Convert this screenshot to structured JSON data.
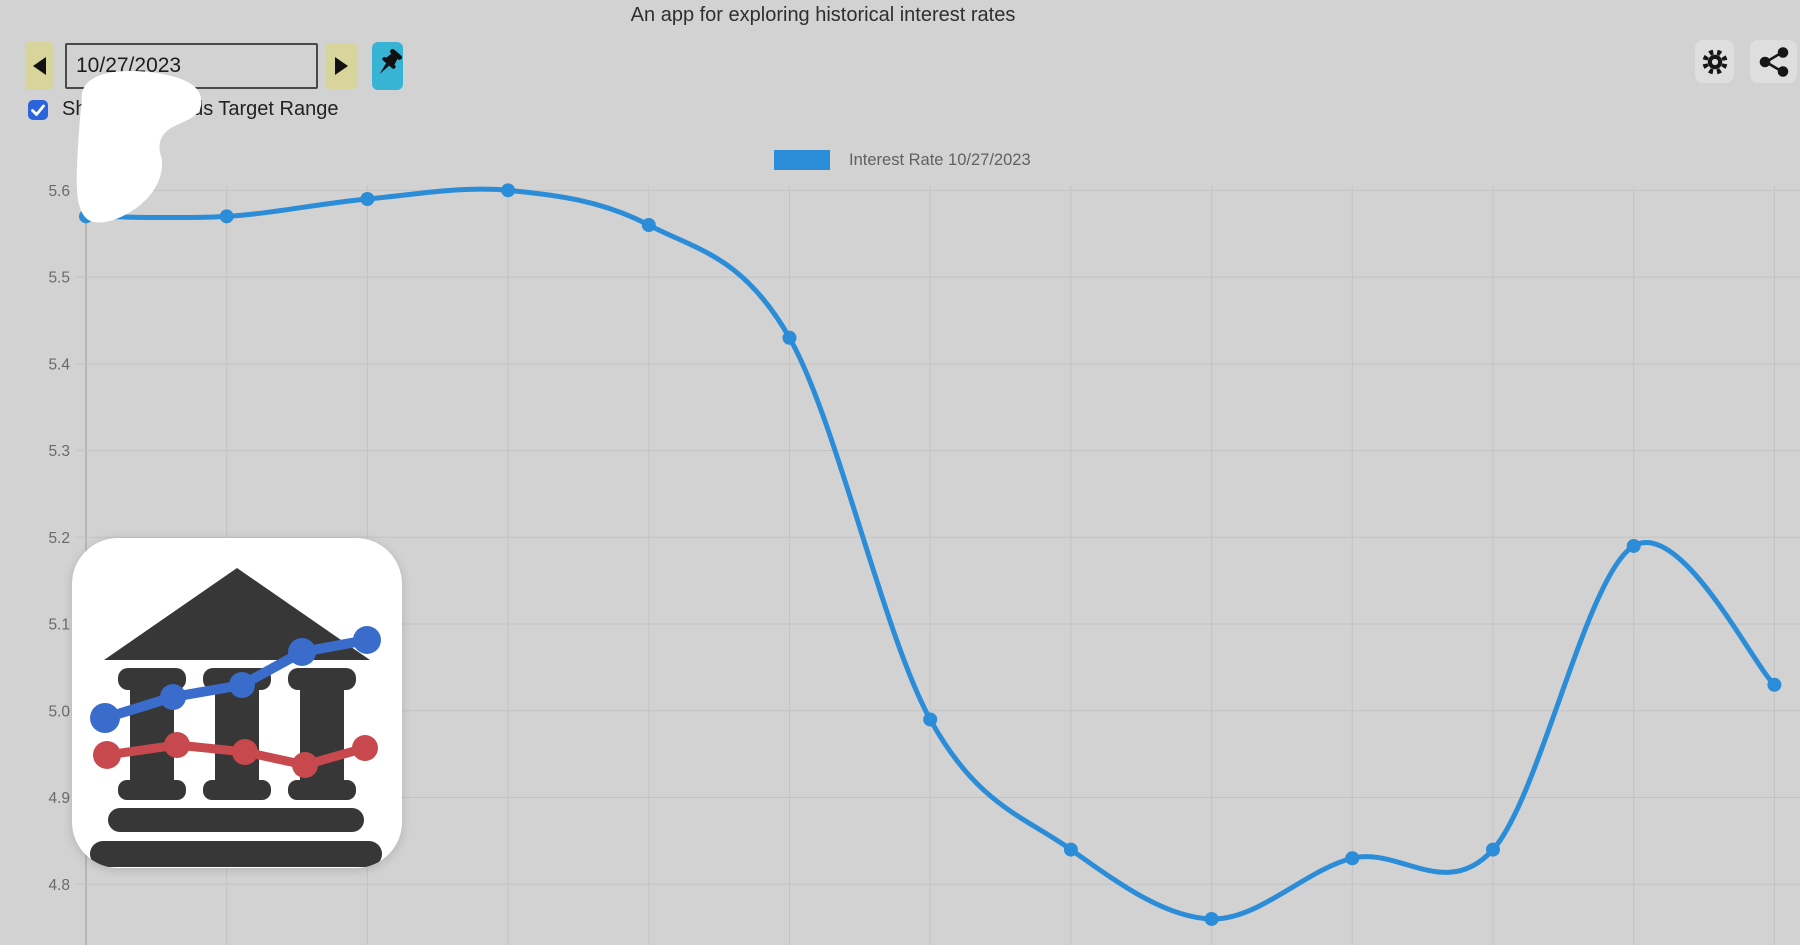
{
  "title": "An app for exploring historical interest rates",
  "toolbar": {
    "date_value": "10/27/2023",
    "target_range_label": "Show Fed Funds Target Range",
    "target_range_checked": true
  },
  "legend": {
    "label": "Interest Rate 10/27/2023"
  },
  "chart_data": {
    "type": "line",
    "title": "",
    "series": [
      {
        "name": "Interest Rate 10/27/2023",
        "color": "#2b8cd8",
        "values": [
          5.57,
          5.57,
          5.59,
          5.6,
          5.56,
          5.43,
          4.99,
          4.84,
          4.76,
          4.83,
          4.84,
          5.19,
          5.03
        ]
      }
    ],
    "x_tick_labels": [
      "",
      "",
      "",
      "",
      "",
      "",
      "",
      "",
      "",
      "",
      "",
      "",
      ""
    ],
    "x_axis_note": "x tick labels cut off below viewport",
    "y_ticks": [
      "5.6",
      "5.5",
      "5.4",
      "5.3",
      "5.2",
      "5.1",
      "5.0",
      "4.9",
      "4.8"
    ],
    "ylim": [
      4.73,
      5.605
    ],
    "grid": true,
    "legend_position": "top-center",
    "point_radius": 7,
    "line_width": 5,
    "smooth": true
  },
  "colors": {
    "background": "#d2d2d2",
    "gridline": "#c3c3c3",
    "axis_line": "#ababab",
    "tick_label": "#6a6a6a",
    "legend_text": "#616161",
    "title_text": "#2f2f2f",
    "line": "#2b8cd8",
    "nav_button": "#d7d49c",
    "pin_button": "#37b3d4",
    "checkbox": "#2a63da",
    "icon_button_bg": "#dedede",
    "logo_dark": "#373737",
    "logo_blue": "#3a6ccc",
    "logo_red": "#c8494d"
  }
}
